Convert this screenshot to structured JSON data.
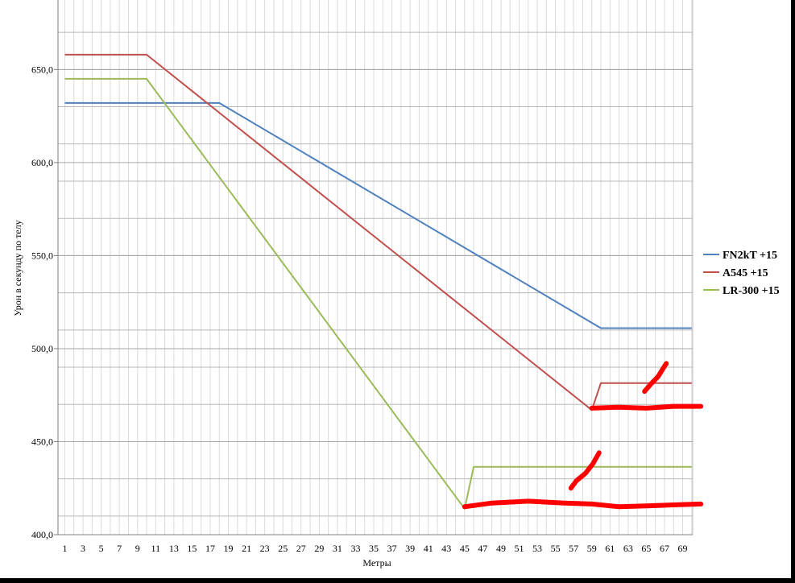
{
  "chart_data": {
    "type": "line",
    "title": "",
    "xlabel": "Метры",
    "ylabel": "Урон в секунду по телу",
    "xlim": [
      1,
      70
    ],
    "ylim": [
      400,
      680
    ],
    "ytick_values": [
      400,
      450,
      500,
      550,
      600,
      650
    ],
    "ytick_labels": [
      "400,0",
      "450,0",
      "500,0",
      "550,0",
      "600,0",
      "650,0"
    ],
    "xtick_labels": [
      "1",
      "3",
      "5",
      "7",
      "9",
      "11",
      "13",
      "15",
      "17",
      "19",
      "21",
      "23",
      "25",
      "27",
      "29",
      "31",
      "33",
      "35",
      "37",
      "39",
      "41",
      "43",
      "45",
      "47",
      "49",
      "51",
      "53",
      "55",
      "57",
      "59",
      "61",
      "63",
      "65",
      "67",
      "69"
    ],
    "grid": true,
    "legend_position": "right",
    "series": [
      {
        "name": "FN2kT +15",
        "color": "#4f81bd",
        "points": [
          [
            1,
            632
          ],
          [
            18,
            632
          ],
          [
            60,
            511
          ],
          [
            70,
            511
          ]
        ]
      },
      {
        "name": "A545 +15",
        "color": "#c0504d",
        "points": [
          [
            1,
            658
          ],
          [
            10,
            658
          ],
          [
            59,
            467
          ],
          [
            60,
            481.5
          ],
          [
            70,
            481.5
          ]
        ]
      },
      {
        "name": "LR-300 +15",
        "color": "#9bbb59",
        "points": [
          [
            1,
            645
          ],
          [
            10,
            645
          ],
          [
            45,
            414
          ],
          [
            46,
            436.5
          ],
          [
            70,
            436.5
          ]
        ]
      }
    ],
    "annotations": [
      {
        "type": "marker-scribble",
        "color": "#ff0000",
        "points": [
          [
            59,
            468
          ],
          [
            62,
            468.5
          ],
          [
            65,
            468
          ],
          [
            68,
            469
          ],
          [
            71,
            469
          ]
        ]
      },
      {
        "type": "marker-scribble",
        "color": "#ff0000",
        "points": [
          [
            64.8,
            477
          ],
          [
            65.5,
            481
          ],
          [
            66.3,
            485
          ],
          [
            66.8,
            489
          ],
          [
            67.2,
            492
          ]
        ]
      },
      {
        "type": "marker-scribble",
        "color": "#ff0000",
        "points": [
          [
            45,
            415
          ],
          [
            48,
            417
          ],
          [
            52,
            418
          ],
          [
            56,
            417
          ],
          [
            59,
            416.5
          ],
          [
            62,
            415
          ],
          [
            65,
            415.5
          ],
          [
            68,
            416
          ],
          [
            71,
            416.5
          ]
        ]
      },
      {
        "type": "marker-scribble",
        "color": "#ff0000",
        "points": [
          [
            56.7,
            425
          ],
          [
            57.3,
            429
          ],
          [
            58.3,
            433
          ],
          [
            59.1,
            438
          ],
          [
            59.8,
            444
          ]
        ]
      }
    ]
  }
}
